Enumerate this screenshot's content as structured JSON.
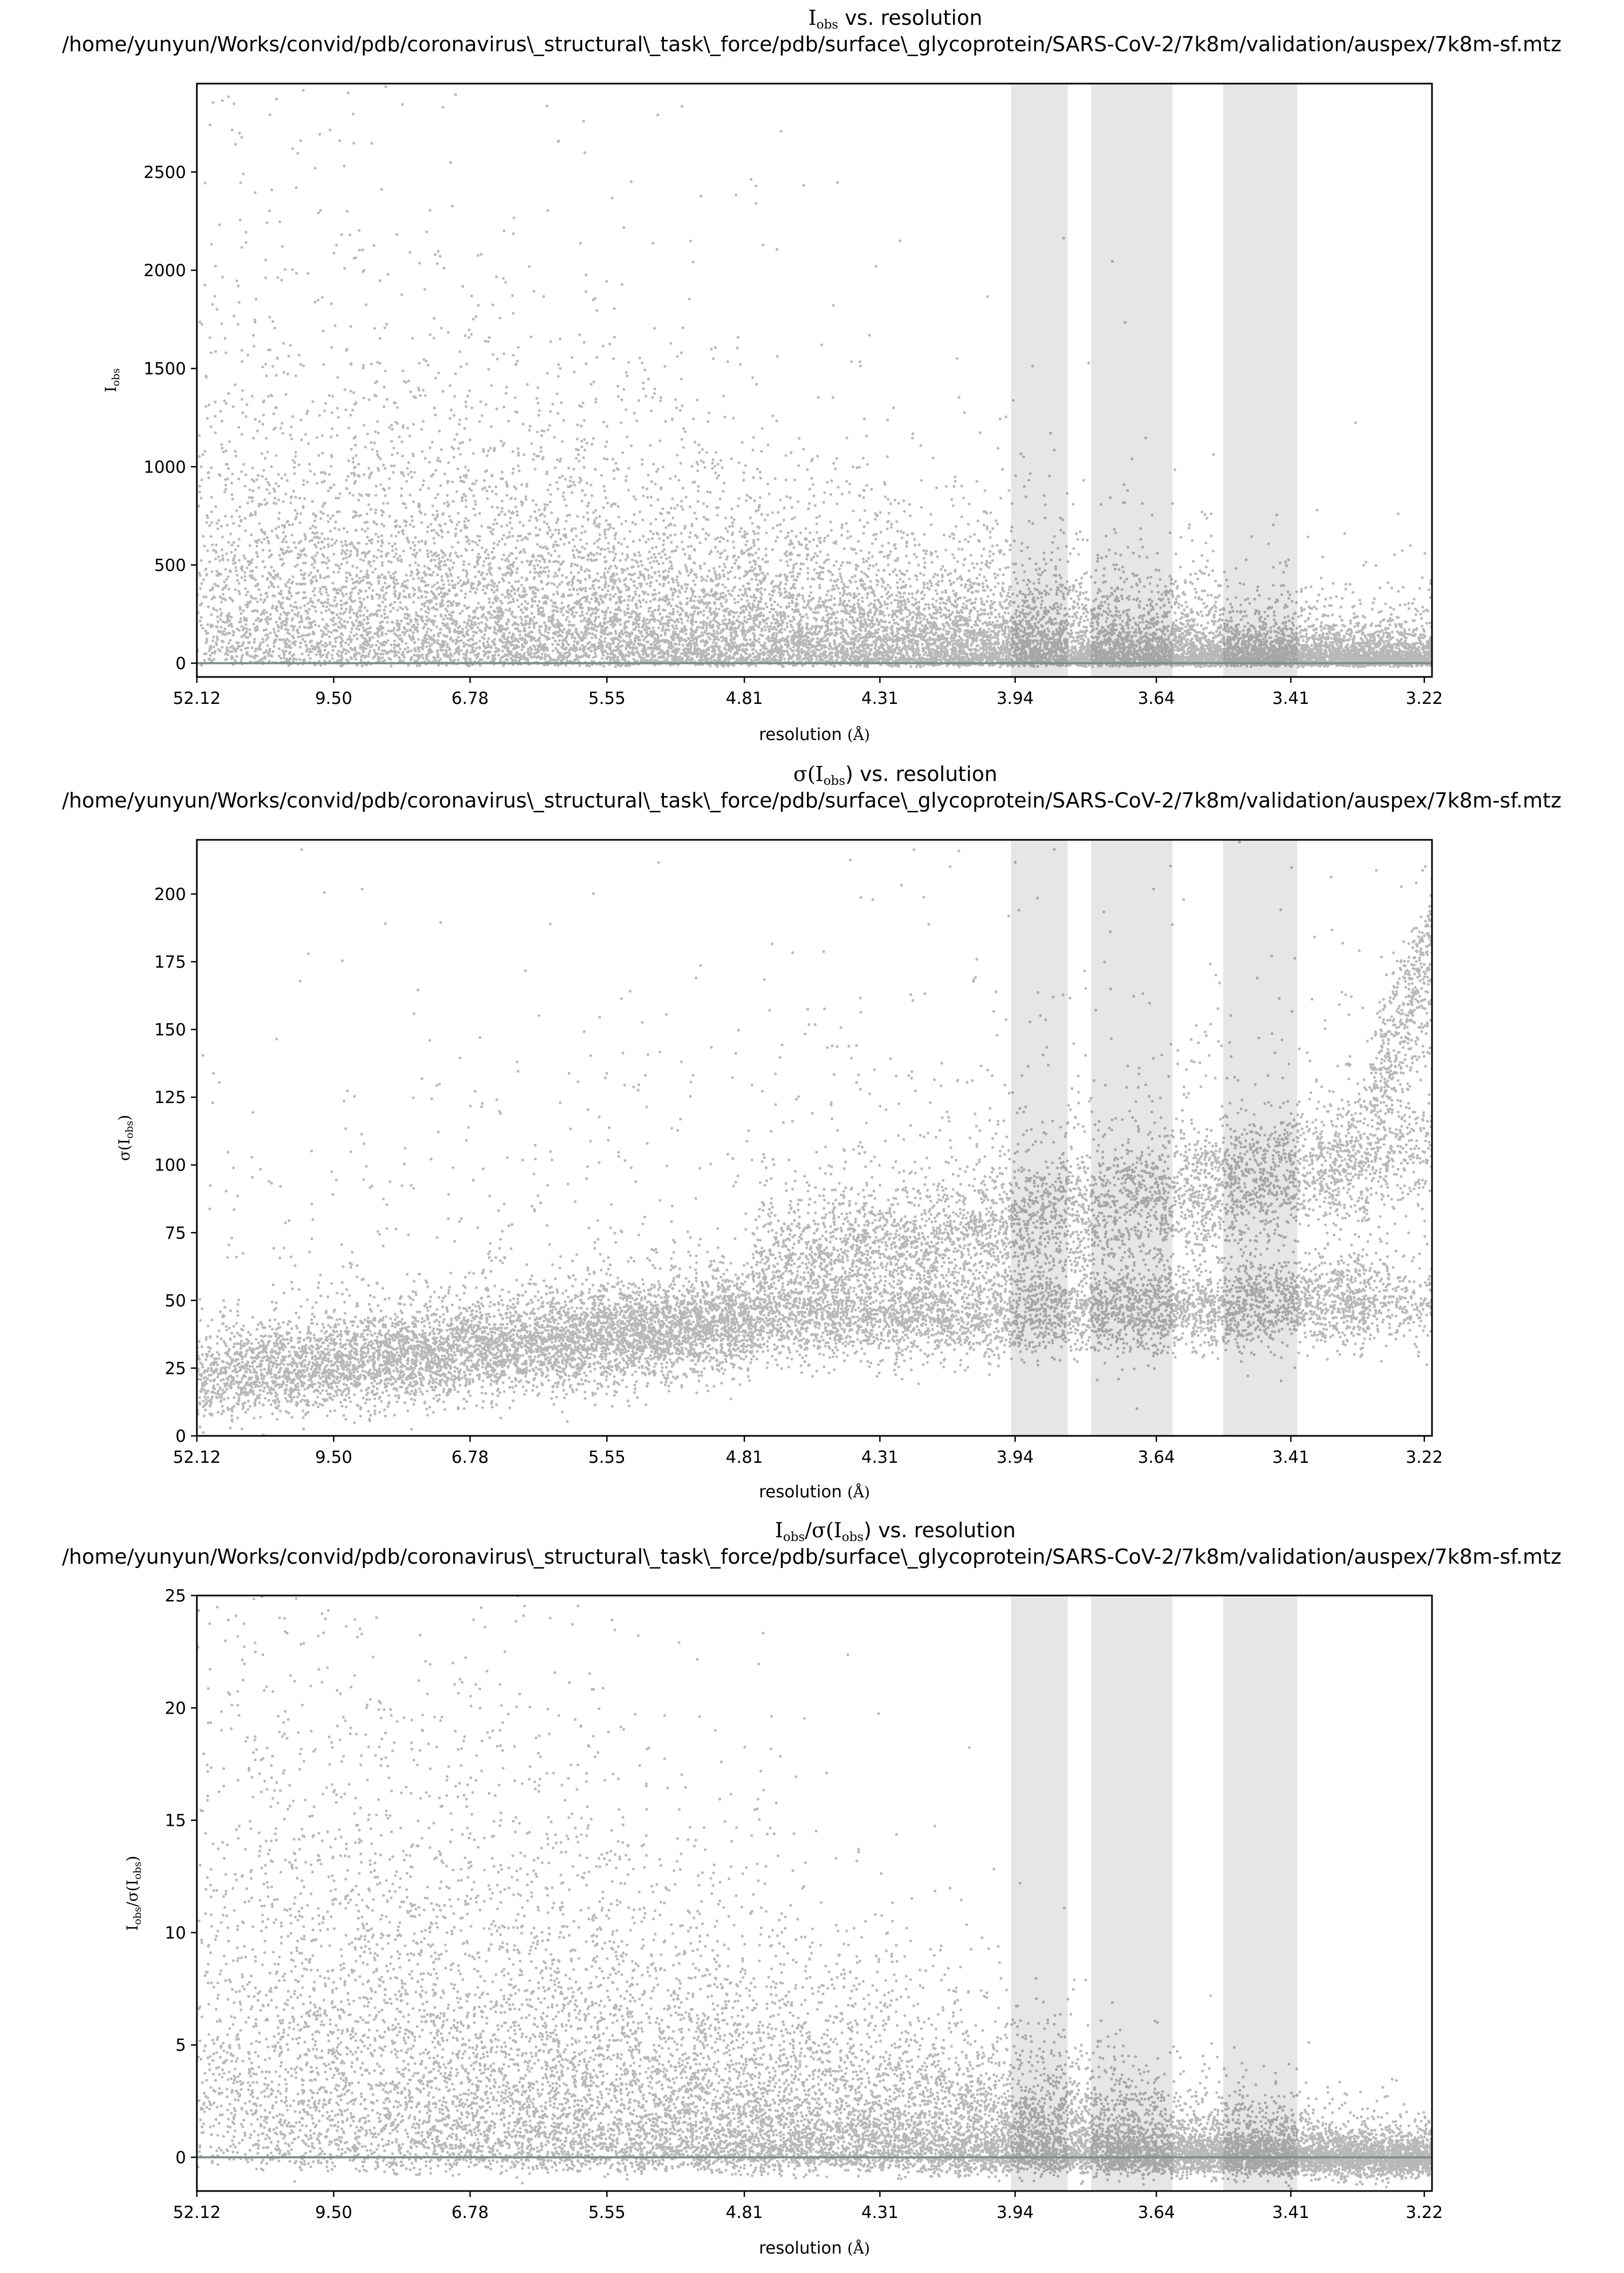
{
  "chart_data": [
    {
      "type": "scatter",
      "title": "I_obs vs. resolution",
      "title_main": "I",
      "title_sub": "obs",
      "title_rest": " vs. resolution",
      "subtitle": "/home/yunyun/Works/convid/pdb/coronavirus\\_structural\\_task\\_force/pdb/surface\\_glycoprotein/SARS-CoV-2/7k8m/validation/auspex/7k8m-sf.mtz",
      "xlabel": "resolution (Å)",
      "xlabel_main": "resolution ",
      "xlabel_unit": "(Å)",
      "ylabel": "I_obs",
      "ylabel_main": "I",
      "ylabel_sub": "obs",
      "x_scale": "1/d^2",
      "x_ticks": [
        "52.12",
        "9.50",
        "6.78",
        "5.55",
        "4.81",
        "4.31",
        "3.94",
        "3.64",
        "3.41",
        "3.22"
      ],
      "xlim": [
        52.12,
        3.21
      ],
      "ylim": [
        -70,
        2950
      ],
      "y_ticks": [
        "0",
        "500",
        "1000",
        "1500",
        "2000",
        "2500"
      ],
      "y_tick_values": [
        0,
        500,
        1000,
        1500,
        2000,
        2500
      ],
      "shaded_bands_resolution": [
        [
          3.95,
          3.82
        ],
        [
          3.77,
          3.61
        ],
        [
          3.52,
          3.4
        ]
      ],
      "shade_color": "#e6e6e6",
      "point_color": "#000000",
      "zero_line_color": "#7f8c8d",
      "profile": {
        "upper_low_res": 2800,
        "lower_trend": "decreasing with resolution, dense near 0–300"
      }
    },
    {
      "type": "scatter",
      "title": "σ(I_obs) vs. resolution",
      "title_main": "σ(I",
      "title_sub": "obs",
      "title_rest": ") vs. resolution",
      "subtitle": "/home/yunyun/Works/convid/pdb/coronavirus\\_structural\\_task\\_force/pdb/surface\\_glycoprotein/SARS-CoV-2/7k8m/validation/auspex/7k8m-sf.mtz",
      "xlabel": "resolution (Å)",
      "xlabel_main": "resolution ",
      "xlabel_unit": "(Å)",
      "ylabel": "σ(I_obs)",
      "ylabel_main": "σ(I",
      "ylabel_sub": "obs",
      "ylabel_end": ")",
      "x_scale": "1/d^2",
      "x_ticks": [
        "52.12",
        "9.50",
        "6.78",
        "5.55",
        "4.81",
        "4.31",
        "3.94",
        "3.64",
        "3.41",
        "3.22"
      ],
      "xlim": [
        52.12,
        3.21
      ],
      "ylim": [
        0,
        220
      ],
      "y_ticks": [
        "0",
        "25",
        "50",
        "75",
        "100",
        "125",
        "150",
        "175",
        "200"
      ],
      "y_tick_values": [
        0,
        25,
        50,
        75,
        100,
        125,
        150,
        175,
        200
      ],
      "shaded_bands_resolution": [
        [
          3.95,
          3.82
        ],
        [
          3.77,
          3.61
        ],
        [
          3.52,
          3.4
        ]
      ],
      "shade_color": "#e6e6e6",
      "point_color": "#000000",
      "profile": {
        "band_low_res": 25,
        "band_mid_res": 45,
        "band_upper_high_res": 110,
        "band_lower_high_res": 50
      }
    },
    {
      "type": "scatter",
      "title": "I_obs/σ(I_obs) vs. resolution",
      "title_main": "I",
      "title_sub": "obs",
      "title_mid": "/σ(I",
      "title_sub2": "obs",
      "title_rest": ") vs. resolution",
      "subtitle": "/home/yunyun/Works/convid/pdb/coronavirus\\_structural\\_task\\_force/pdb/surface\\_glycoprotein/SARS-CoV-2/7k8m/validation/auspex/7k8m-sf.mtz",
      "xlabel": "resolution (Å)",
      "xlabel_main": "resolution ",
      "xlabel_unit": "(Å)",
      "ylabel": "I_obs/σ(I_obs)",
      "ylabel_main": "I",
      "ylabel_sub": "obs",
      "ylabel_mid": "/σ(I",
      "ylabel_sub2": "obs",
      "ylabel_end": ")",
      "x_scale": "1/d^2",
      "x_ticks": [
        "52.12",
        "9.50",
        "6.78",
        "5.55",
        "4.81",
        "4.31",
        "3.94",
        "3.64",
        "3.41",
        "3.22"
      ],
      "xlim": [
        52.12,
        3.21
      ],
      "ylim": [
        -1.5,
        25
      ],
      "y_ticks": [
        "0",
        "5",
        "10",
        "15",
        "20",
        "25"
      ],
      "y_tick_values": [
        0,
        5,
        10,
        15,
        20,
        25
      ],
      "shaded_bands_resolution": [
        [
          3.95,
          3.82
        ],
        [
          3.77,
          3.61
        ],
        [
          3.52,
          3.4
        ]
      ],
      "shade_color": "#e6e6e6",
      "point_color": "#000000",
      "zero_line_color": "#7f8c8d",
      "profile": {
        "max_low_res": 25,
        "dense_region_max": 5,
        "high_res_median": 0.5
      }
    }
  ]
}
